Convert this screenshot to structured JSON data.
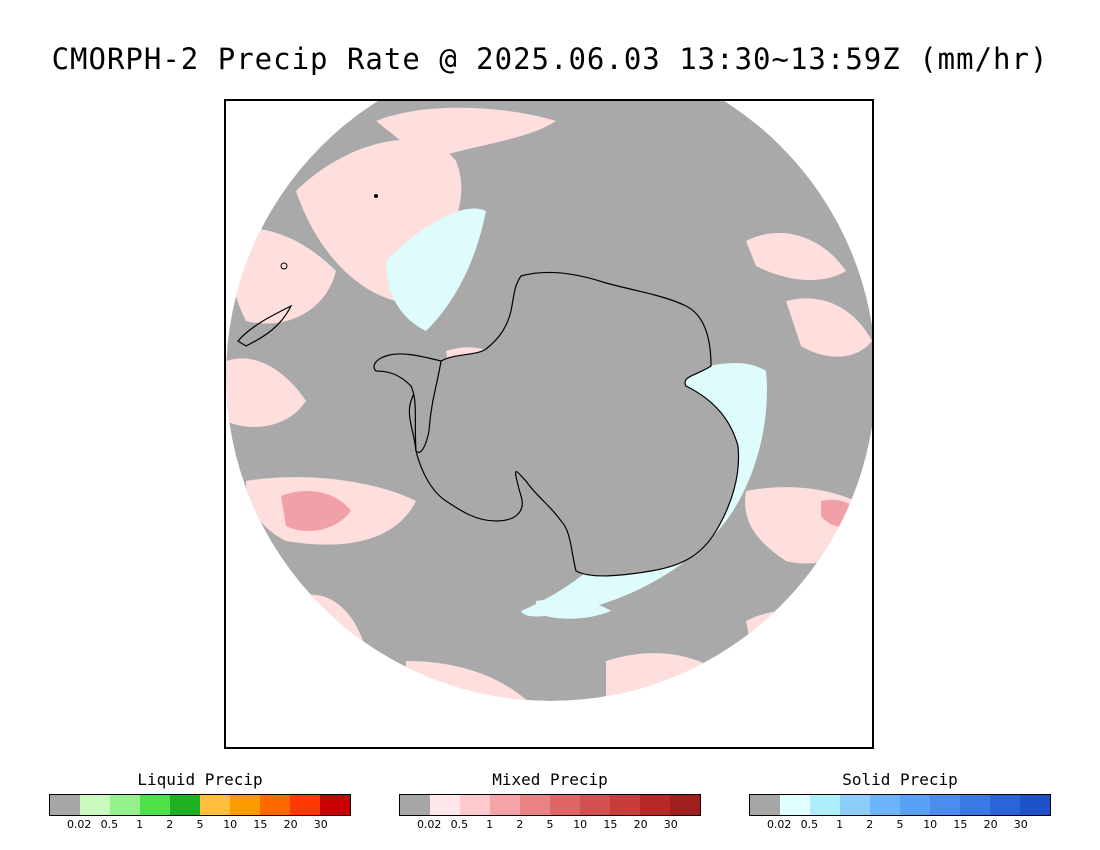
{
  "title": "CMORPH-2 Precip Rate @ 2025.06.03 13:30~13:59Z (mm/hr)",
  "map": {
    "projection": "south-polar-stereographic",
    "region": "Antarctica / Southern Ocean",
    "colors": {
      "no_precip": "#a9a9a9",
      "mixed_light": "#ffdede",
      "mixed_mid": "#f2a0a8",
      "solid_light": "#dffcfd",
      "liquid_light": "#b8f5b0",
      "coast": "#000000"
    }
  },
  "legends": [
    {
      "title": "Liquid Precip",
      "colors": [
        "#a6a6a6",
        "#c8fac0",
        "#96f08c",
        "#4ee24a",
        "#1eb020",
        "#ffbe3c",
        "#ff9a00",
        "#ff6a00",
        "#ff3800",
        "#c80000"
      ],
      "ticks": [
        "0.02",
        "0.5",
        "1",
        "2",
        "5",
        "10",
        "15",
        "20",
        "30"
      ]
    },
    {
      "title": "Mixed Precip",
      "colors": [
        "#a6a6a6",
        "#ffe6ea",
        "#ffc8cc",
        "#f4a4a8",
        "#ea8484",
        "#e06666",
        "#d45050",
        "#c83c3c",
        "#b82828",
        "#a01e1e"
      ],
      "ticks": [
        "0.02",
        "0.5",
        "1",
        "2",
        "5",
        "10",
        "15",
        "20",
        "30"
      ]
    },
    {
      "title": "Solid Precip",
      "colors": [
        "#a6a6a6",
        "#e0ffff",
        "#aeeefa",
        "#8ccdfa",
        "#6eb4fa",
        "#5aa0f5",
        "#4b8cf0",
        "#3a78e6",
        "#2a64d8",
        "#1e50c8"
      ],
      "ticks": [
        "0.02",
        "0.5",
        "1",
        "2",
        "5",
        "10",
        "15",
        "20",
        "30"
      ]
    }
  ]
}
